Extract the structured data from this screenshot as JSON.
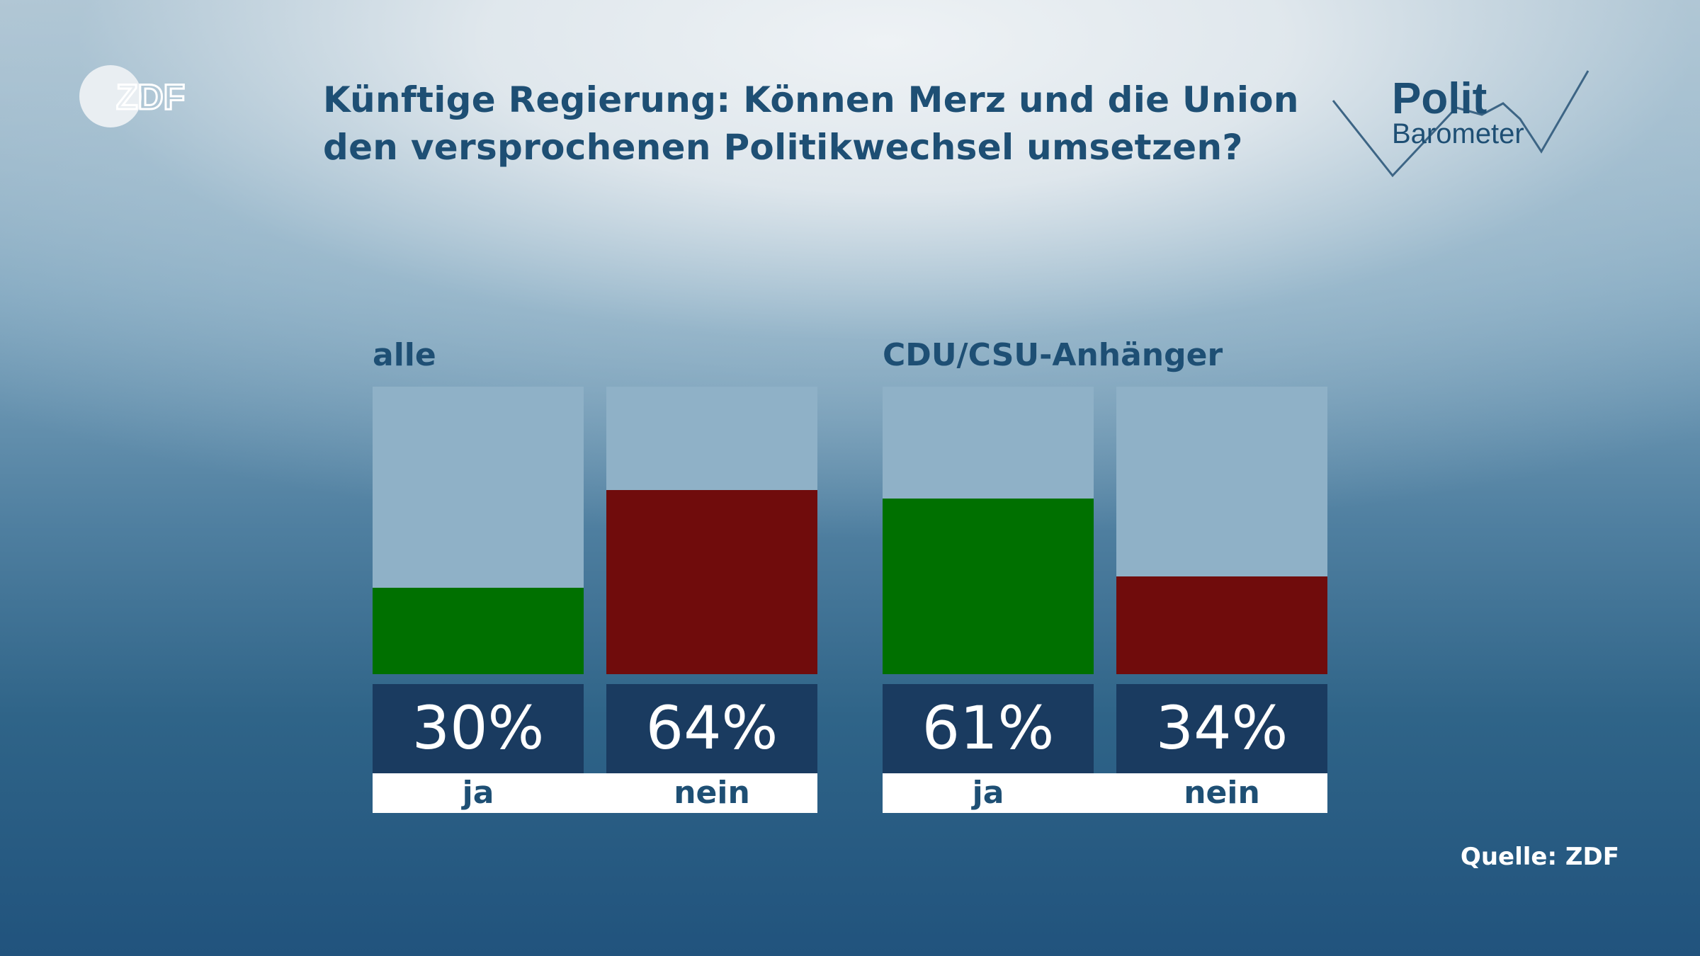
{
  "logo": {
    "text": "ZDF",
    "icon": "zdf-logo"
  },
  "title_line1": "Künftige Regierung: Können Merz und die Union",
  "title_line2": "den versprochenen Politikwechsel umsetzen?",
  "brand": {
    "polit": "Polit",
    "barometer": "Barometer",
    "icon": "politbarometer-logo"
  },
  "source": "Quelle: ZDF",
  "colors": {
    "ja": "#007000",
    "nein": "#700c0c",
    "track": "#8fb1c7",
    "value_box": "#1a3b60",
    "text": "#1e4f74"
  },
  "chart_data": {
    "type": "bar",
    "unit": "%",
    "ylim": [
      0,
      100
    ],
    "categories": [
      "ja",
      "nein"
    ],
    "groups": [
      {
        "name": "alle",
        "values": [
          30,
          64
        ],
        "labels": [
          "30%",
          "64%"
        ]
      },
      {
        "name": "CDU/CSU-Anhänger",
        "values": [
          61,
          34
        ],
        "labels": [
          "61%",
          "34%"
        ]
      }
    ]
  }
}
